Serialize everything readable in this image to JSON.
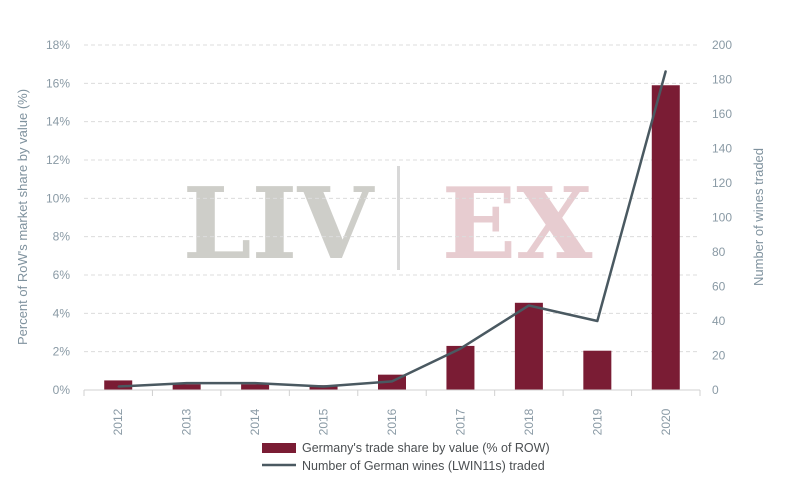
{
  "colors": {
    "bar": "#7a1c34",
    "line": "#4a5961",
    "grid": "#dcdcdc",
    "tick": "#8a9aa5",
    "watermark_left": "#c9c9c4",
    "watermark_right": "#e5c7cc"
  },
  "watermark": {
    "left": "LIV",
    "right": "EX"
  },
  "chart_data": {
    "type": "bar",
    "categories": [
      "2012",
      "2013",
      "2014",
      "2015",
      "2016",
      "2017",
      "2018",
      "2019",
      "2020"
    ],
    "series": [
      {
        "name": "Germany's trade share by value (% of ROW)",
        "type": "bar",
        "axis": "left",
        "values": [
          0.5,
          0.3,
          0.3,
          0.25,
          0.8,
          2.3,
          4.55,
          2.05,
          15.9
        ]
      },
      {
        "name": "Number of German wines (LWIN11s) traded",
        "type": "line",
        "axis": "right",
        "values": [
          2,
          4,
          4,
          2,
          5,
          24,
          49,
          40,
          185
        ]
      }
    ],
    "y_left": {
      "label": "Percent of RoW's market share by value (%)",
      "ticks": [
        "0%",
        "2%",
        "4%",
        "6%",
        "8%",
        "10%",
        "12%",
        "14%",
        "16%",
        "18%"
      ],
      "range": [
        0,
        18
      ]
    },
    "y_right": {
      "label": "Number of wines traded",
      "ticks": [
        "0",
        "20",
        "40",
        "60",
        "80",
        "100",
        "120",
        "140",
        "160",
        "180",
        "200"
      ],
      "range": [
        0,
        200
      ]
    },
    "grid": true,
    "legend_position": "bottom"
  }
}
